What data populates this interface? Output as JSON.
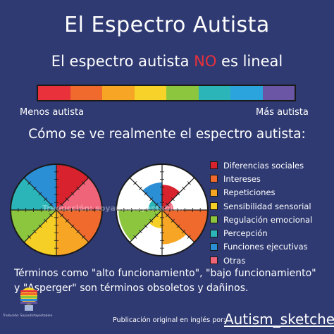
{
  "title": "El Espectro Autista",
  "subtitle": {
    "before": "El espectro autista ",
    "highlight": "NO",
    "after": " es lineal"
  },
  "linear_bar": {
    "colors": [
      "#e8313b",
      "#ef6a2c",
      "#f7a524",
      "#f7d229",
      "#8cc63f",
      "#2bb5b8",
      "#2ba4dd",
      "#6a56a5"
    ],
    "label_left": "Menos autista",
    "label_right": "Más autista"
  },
  "heading2": "Cómo se ve realmente el espectro autista:",
  "categories": [
    {
      "label": "Diferencias sociales",
      "color": "#d8222d"
    },
    {
      "label": "Intereses",
      "color": "#ef6a2c"
    },
    {
      "label": "Repeticiones",
      "color": "#f7a524"
    },
    {
      "label": "Sensibilidad sensorial",
      "color": "#f5cf25"
    },
    {
      "label": "Regulación emocional",
      "color": "#8cc63f"
    },
    {
      "label": "Percepción",
      "color": "#2bb5b8"
    },
    {
      "label": "Funciones ejecutivas",
      "color": "#2b8fd6"
    },
    {
      "label": "Otras",
      "color": "#f0647a"
    }
  ],
  "watermark": "Traducción: soyautistayestabien",
  "bottom_text": "Términos como \"alto funcionamiento\", \"bajo funcionamiento\" y \"Asperger\" son términos obsoletos y dañinos.",
  "credit": "Publicación original en inglés por:",
  "handle": "Autism_sketches",
  "logo_caption": "Traducido: Soyautistayestabien"
}
